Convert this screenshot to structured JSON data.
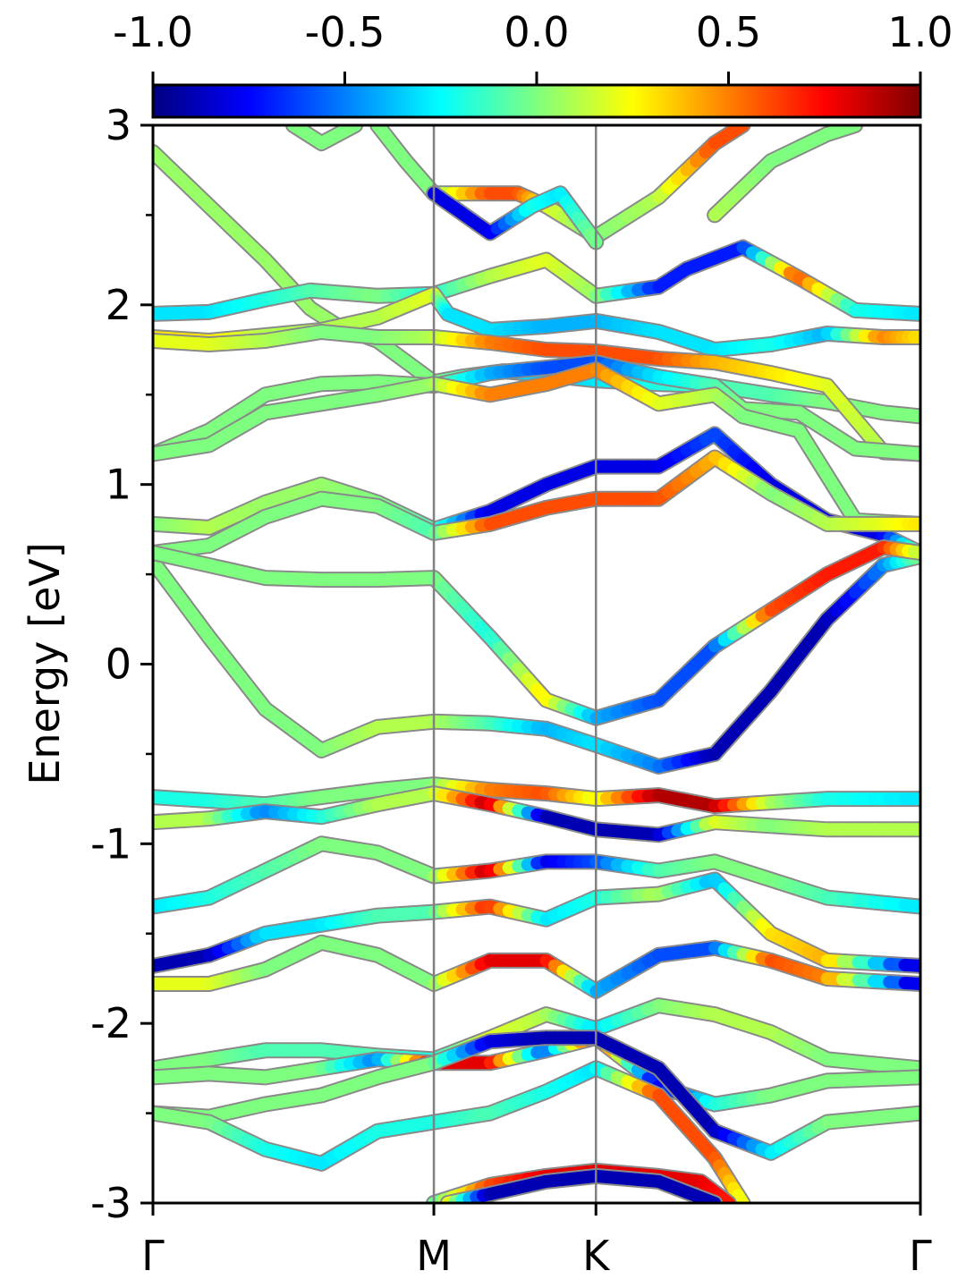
{
  "chart_data": {
    "type": "line",
    "title": "",
    "xlabel": "",
    "ylabel": "Energy [eV]",
    "ylim": [
      -3,
      3
    ],
    "yticks": [
      "-3",
      "-2",
      "-1",
      "0",
      "1",
      "2",
      "3"
    ],
    "yminor": [
      -2.5,
      -1.5,
      -0.5,
      0.5,
      1.5,
      2.5
    ],
    "kpath": {
      "labels": [
        "Γ",
        "M",
        "K",
        "Γ"
      ],
      "positions": [
        0,
        1,
        1.577,
        2.732
      ]
    },
    "colorbar": {
      "colormap": "jet",
      "range": [
        -1.0,
        1.0
      ],
      "ticks": [
        "-1.0",
        "-0.5",
        "0.0",
        "0.5",
        "1.0"
      ],
      "placement": "top"
    },
    "colors": {
      "jet": [
        "#00007f",
        "#0000ff",
        "#007fff",
        "#00ffff",
        "#7fff7f",
        "#ffff00",
        "#ff7f00",
        "#ff0000",
        "#7f0000"
      ],
      "divider": "#808080"
    },
    "series": [
      {
        "x": [
          0.0,
          0.2,
          0.4,
          0.56,
          0.66,
          0.8,
          1.0,
          1.1,
          1.25,
          1.4,
          1.577,
          1.8,
          2.0,
          2.2,
          2.4,
          2.6,
          2.732
        ],
        "y": [
          2.85,
          2.55,
          2.25,
          1.98,
          1.88,
          1.8,
          1.57,
          1.6,
          1.63,
          1.61,
          1.58,
          1.56,
          1.55,
          1.5,
          1.46,
          1.4,
          1.38
        ],
        "c": [
          0.05,
          0.05,
          0.05,
          0.05,
          0.05,
          0.0,
          0.0,
          -0.1,
          -0.3,
          -0.35,
          -0.3,
          -0.2,
          -0.1,
          -0.1,
          0.0,
          0.0,
          0.0
        ]
      },
      {
        "x": [
          0.0,
          0.2,
          0.4,
          0.56,
          0.8,
          1.0,
          1.2,
          1.4,
          1.577,
          1.8,
          1.9,
          2.1,
          2.3,
          2.5,
          2.732
        ],
        "y": [
          1.95,
          1.96,
          2.03,
          2.08,
          2.05,
          2.06,
          2.16,
          2.25,
          2.05,
          2.1,
          2.2,
          2.32,
          2.15,
          1.97,
          1.95
        ],
        "c": [
          -0.3,
          -0.3,
          -0.2,
          -0.1,
          0.0,
          -0.2,
          0.1,
          0.2,
          0.05,
          -0.7,
          -0.7,
          -0.7,
          0.6,
          -0.2,
          -0.3
        ]
      },
      {
        "x": [
          0.0,
          0.2,
          0.4,
          0.6,
          0.8,
          1.0,
          1.05,
          1.2,
          1.4,
          1.577,
          1.8,
          2.0,
          2.2,
          2.4,
          2.6,
          2.732
        ],
        "y": [
          1.82,
          1.8,
          1.83,
          1.86,
          1.93,
          2.06,
          1.95,
          1.86,
          1.88,
          1.91,
          1.85,
          1.75,
          1.78,
          1.84,
          1.82,
          1.82
        ],
        "c": [
          0.3,
          0.3,
          0.1,
          0.1,
          0.1,
          0.2,
          -0.3,
          -0.3,
          -0.4,
          -0.4,
          -0.3,
          -0.3,
          -0.2,
          -0.4,
          0.5,
          0.3
        ]
      },
      {
        "x": [
          0.0,
          0.2,
          0.4,
          0.6,
          0.8,
          1.0,
          1.2,
          1.4,
          1.577,
          1.8,
          2.0,
          2.2,
          2.4,
          2.6,
          2.732
        ],
        "y": [
          1.8,
          1.78,
          1.8,
          1.85,
          1.82,
          1.82,
          1.79,
          1.75,
          1.74,
          1.7,
          1.68,
          1.62,
          1.55,
          1.18,
          1.17
        ],
        "c": [
          0.2,
          0.2,
          0.1,
          0.0,
          0.0,
          0.1,
          0.5,
          0.6,
          0.6,
          0.6,
          0.4,
          0.3,
          0.2,
          0.1,
          0.1
        ]
      },
      {
        "x": [
          0.0,
          0.2,
          0.4,
          0.6,
          0.8,
          1.0,
          1.2,
          1.4,
          1.577,
          1.8,
          2.0,
          2.1,
          2.3,
          2.5,
          2.732
        ],
        "y": [
          1.17,
          1.3,
          1.5,
          1.56,
          1.57,
          1.55,
          1.62,
          1.65,
          1.68,
          1.6,
          1.55,
          1.42,
          1.4,
          1.2,
          1.17
        ],
        "c": [
          0.0,
          0.0,
          0.0,
          0.0,
          0.0,
          0.0,
          -0.4,
          -0.6,
          -0.6,
          -0.3,
          -0.1,
          0.0,
          0.0,
          0.0,
          0.0
        ]
      },
      {
        "x": [
          0.0,
          0.2,
          0.4,
          0.6,
          0.8,
          1.0,
          1.2,
          1.4,
          1.577,
          1.8,
          2.0,
          2.1,
          2.3,
          2.5,
          2.732
        ],
        "y": [
          1.17,
          1.22,
          1.4,
          1.45,
          1.5,
          1.56,
          1.5,
          1.56,
          1.64,
          1.45,
          1.5,
          1.38,
          1.3,
          0.8,
          0.78
        ],
        "c": [
          0.0,
          0.0,
          0.0,
          0.0,
          0.0,
          0.05,
          0.5,
          0.5,
          0.5,
          0.2,
          0.1,
          0.0,
          0.0,
          0.0,
          0.0
        ]
      },
      {
        "x": [
          0.0,
          0.2,
          0.4,
          0.6,
          0.8,
          1.0,
          1.2,
          1.4,
          1.577,
          1.8,
          2.0,
          2.2,
          2.4,
          2.6,
          2.732
        ],
        "y": [
          0.78,
          0.76,
          0.9,
          1.0,
          0.9,
          0.75,
          0.85,
          1.0,
          1.1,
          1.1,
          1.28,
          1.0,
          0.8,
          0.72,
          0.62
        ],
        "c": [
          0.0,
          0.1,
          0.05,
          0.05,
          0.0,
          -0.1,
          -0.8,
          -0.8,
          -0.8,
          -0.8,
          -0.6,
          -0.8,
          -0.8,
          -0.8,
          0.05
        ]
      },
      {
        "x": [
          0.0,
          0.2,
          0.4,
          0.6,
          0.8,
          1.0,
          1.2,
          1.4,
          1.577,
          1.8,
          2.0,
          2.2,
          2.4,
          2.6,
          2.732
        ],
        "y": [
          0.62,
          0.66,
          0.82,
          0.92,
          0.88,
          0.73,
          0.78,
          0.87,
          0.92,
          0.92,
          1.15,
          0.95,
          0.78,
          0.78,
          0.78
        ],
        "c": [
          0.0,
          0.0,
          0.0,
          0.0,
          0.0,
          -0.1,
          0.6,
          0.6,
          0.6,
          0.6,
          0.4,
          0.0,
          0.1,
          0.2,
          0.3
        ]
      },
      {
        "x": [
          0.0,
          0.2,
          0.4,
          0.6,
          0.8,
          1.0,
          1.2,
          1.4,
          1.577,
          1.8,
          2.0,
          2.2,
          2.4,
          2.6,
          2.732
        ],
        "y": [
          0.57,
          0.15,
          -0.25,
          -0.48,
          -0.35,
          -0.32,
          -0.33,
          -0.36,
          -0.45,
          -0.57,
          -0.5,
          -0.15,
          0.25,
          0.55,
          0.6
        ],
        "c": [
          0.0,
          0.0,
          0.0,
          0.0,
          0.1,
          0.1,
          -0.1,
          -0.4,
          -0.3,
          -0.5,
          -0.9,
          -0.9,
          -0.9,
          -0.5,
          0.0
        ]
      },
      {
        "x": [
          0.0,
          0.2,
          0.4,
          0.6,
          0.8,
          1.0,
          1.2,
          1.4,
          1.577,
          1.8,
          2.0,
          2.2,
          2.4,
          2.6,
          2.732
        ],
        "y": [
          0.62,
          0.55,
          0.48,
          0.47,
          0.47,
          0.48,
          0.15,
          -0.2,
          -0.3,
          -0.2,
          0.1,
          0.3,
          0.5,
          0.65,
          0.62
        ],
        "c": [
          0.0,
          0.0,
          0.0,
          0.0,
          0.0,
          0.0,
          -0.2,
          0.3,
          -0.4,
          -0.6,
          -0.6,
          0.6,
          0.7,
          0.7,
          0.1
        ]
      },
      {
        "x": [
          0.0,
          0.2,
          0.4,
          0.6,
          0.8,
          1.0,
          1.2,
          1.4,
          1.577,
          1.8,
          2.0,
          2.2,
          2.4,
          2.732
        ],
        "y": [
          -0.74,
          -0.76,
          -0.78,
          -0.74,
          -0.7,
          -0.67,
          -0.7,
          -0.72,
          -0.75,
          -0.73,
          -0.79,
          -0.77,
          -0.75,
          -0.75
        ],
        "c": [
          -0.2,
          -0.2,
          -0.1,
          0.0,
          0.0,
          0.0,
          0.5,
          0.6,
          0.2,
          0.9,
          0.9,
          0.1,
          -0.2,
          -0.3
        ]
      },
      {
        "x": [
          0.0,
          0.2,
          0.4,
          0.6,
          0.8,
          1.0,
          1.2,
          1.4,
          1.577,
          1.8,
          2.0,
          2.2,
          2.4,
          2.732
        ],
        "y": [
          -0.88,
          -0.86,
          -0.82,
          -0.85,
          -0.78,
          -0.72,
          -0.78,
          -0.85,
          -0.92,
          -0.95,
          -0.88,
          -0.9,
          -0.92,
          -0.92
        ],
        "c": [
          0.1,
          0.1,
          -0.5,
          -0.2,
          0.1,
          0.1,
          0.9,
          -0.9,
          -0.9,
          -0.9,
          0.2,
          0.0,
          0.1,
          0.1
        ]
      },
      {
        "x": [
          0.0,
          0.2,
          0.4,
          0.6,
          0.8,
          1.0,
          1.2,
          1.4,
          1.577,
          1.8,
          2.0,
          2.2,
          2.4,
          2.732
        ],
        "y": [
          -1.35,
          -1.3,
          -1.15,
          -1.0,
          -1.05,
          -1.18,
          -1.15,
          -1.1,
          -1.1,
          -1.15,
          -1.1,
          -1.2,
          -1.3,
          -1.35
        ],
        "c": [
          -0.3,
          -0.2,
          -0.1,
          0.0,
          0.0,
          0.0,
          0.9,
          -0.8,
          -0.6,
          -0.1,
          0.0,
          0.0,
          -0.1,
          -0.3
        ]
      },
      {
        "x": [
          0.0,
          0.2,
          0.4,
          0.6,
          0.8,
          1.0,
          1.2,
          1.4,
          1.577,
          1.8,
          2.0,
          2.2,
          2.4,
          2.732
        ],
        "y": [
          -1.68,
          -1.62,
          -1.5,
          -1.45,
          -1.4,
          -1.38,
          -1.35,
          -1.42,
          -1.3,
          -1.28,
          -1.2,
          -1.5,
          -1.65,
          -1.68
        ],
        "c": [
          -0.9,
          -0.9,
          -0.3,
          -0.3,
          -0.1,
          -0.1,
          0.7,
          -0.3,
          -0.2,
          0.1,
          -0.4,
          0.3,
          0.4,
          -0.9
        ]
      },
      {
        "x": [
          0.0,
          0.2,
          0.4,
          0.6,
          0.8,
          1.0,
          1.2,
          1.4,
          1.577,
          1.8,
          2.0,
          2.2,
          2.4,
          2.732
        ],
        "y": [
          -1.78,
          -1.78,
          -1.7,
          -1.55,
          -1.62,
          -1.78,
          -1.65,
          -1.65,
          -1.82,
          -1.62,
          -1.58,
          -1.65,
          -1.75,
          -1.78
        ],
        "c": [
          0.2,
          0.2,
          0.0,
          0.0,
          0.0,
          0.0,
          0.8,
          0.8,
          -0.4,
          -0.6,
          -0.6,
          0.6,
          0.5,
          -0.9
        ]
      },
      {
        "x": [
          0.0,
          0.2,
          0.4,
          0.6,
          0.8,
          1.0,
          1.2,
          1.4,
          1.577,
          1.8,
          2.0,
          2.2,
          2.4,
          2.732
        ],
        "y": [
          -2.25,
          -2.2,
          -2.15,
          -2.15,
          -2.18,
          -2.2,
          -2.08,
          -1.95,
          -2.03,
          -1.9,
          -1.95,
          -2.05,
          -2.2,
          -2.25
        ],
        "c": [
          0.0,
          0.0,
          -0.1,
          -0.1,
          -0.1,
          -0.2,
          0.2,
          0.1,
          -0.3,
          0.0,
          0.1,
          0.1,
          0.0,
          0.0
        ]
      },
      {
        "x": [
          0.0,
          0.2,
          0.4,
          0.6,
          0.8,
          1.0,
          1.2,
          1.4,
          1.577,
          1.8,
          2.0,
          2.2,
          2.4,
          2.732
        ],
        "y": [
          -2.3,
          -2.28,
          -2.3,
          -2.25,
          -2.2,
          -2.22,
          -2.22,
          -2.15,
          -2.08,
          -2.35,
          -2.45,
          -2.4,
          -2.32,
          -2.3
        ],
        "c": [
          0.0,
          0.0,
          0.0,
          0.0,
          -0.5,
          0.8,
          0.8,
          -0.6,
          0.8,
          -0.8,
          -0.2,
          0.0,
          0.0,
          0.0
        ]
      },
      {
        "x": [
          0.0,
          0.2,
          0.4,
          0.6,
          0.8,
          1.0,
          1.2,
          1.4,
          1.577,
          1.8,
          2.0,
          2.2,
          2.4,
          2.732
        ],
        "y": [
          -2.5,
          -2.52,
          -2.45,
          -2.4,
          -2.3,
          -2.22,
          -2.1,
          -2.08,
          -2.08,
          -2.25,
          -2.6,
          -2.72,
          -2.55,
          -2.5
        ],
        "c": [
          0.0,
          0.0,
          0.0,
          0.0,
          0.0,
          0.0,
          -0.8,
          -0.9,
          -0.9,
          -0.9,
          -0.9,
          -0.3,
          0.0,
          0.0
        ]
      },
      {
        "x": [
          0.0,
          0.2,
          0.4,
          0.6,
          0.8,
          1.0,
          1.2,
          1.4,
          1.577,
          1.8,
          2.0,
          2.1
        ],
        "y": [
          -2.5,
          -2.55,
          -2.7,
          -2.78,
          -2.6,
          -2.55,
          -2.5,
          -2.38,
          -2.25,
          -2.4,
          -2.75,
          -3.0
        ],
        "c": [
          0.0,
          0.0,
          -0.2,
          -0.3,
          -0.2,
          -0.2,
          -0.1,
          -0.2,
          -0.3,
          0.6,
          0.6,
          0.2
        ]
      },
      {
        "x": [
          1.0,
          1.2,
          1.4,
          1.577,
          1.8,
          1.95,
          2.05
        ],
        "y": [
          -3.0,
          -2.9,
          -2.85,
          -2.82,
          -2.85,
          -2.88,
          -3.0
        ],
        "c": [
          -0.1,
          0.6,
          0.8,
          0.8,
          0.8,
          0.8,
          0.7
        ]
      },
      {
        "x": [
          1.05,
          1.2,
          1.4,
          1.577,
          1.8,
          2.0
        ],
        "y": [
          -3.0,
          -2.95,
          -2.88,
          -2.85,
          -2.88,
          -3.0
        ],
        "c": [
          0.3,
          -0.9,
          -0.9,
          -0.9,
          -0.9,
          -0.9
        ]
      },
      {
        "x": [
          0.8,
          0.9,
          1.0,
          1.2,
          1.3,
          1.4,
          1.577,
          1.8,
          2.0,
          2.1
        ],
        "y": [
          3.0,
          2.8,
          2.62,
          2.62,
          2.62,
          2.55,
          2.38,
          2.6,
          2.9,
          3.0
        ],
        "c": [
          0.0,
          0.0,
          0.0,
          0.6,
          0.6,
          0.2,
          0.0,
          0.1,
          0.6,
          0.6
        ]
      },
      {
        "x": [
          1.0,
          1.2,
          1.35,
          1.45,
          1.577
        ],
        "y": [
          2.62,
          2.4,
          2.55,
          2.62,
          2.35
        ],
        "c": [
          -0.8,
          -0.8,
          -0.2,
          -0.3,
          0.0
        ]
      },
      {
        "x": [
          0.5,
          0.6,
          0.72
        ],
        "y": [
          3.0,
          2.9,
          3.0
        ],
        "c": [
          0.0,
          0.0,
          0.0
        ]
      },
      {
        "x": [
          2.0,
          2.2,
          2.4,
          2.5
        ],
        "y": [
          2.5,
          2.8,
          2.95,
          3.0
        ],
        "c": [
          0.1,
          0.0,
          0.0,
          0.0
        ]
      }
    ]
  }
}
